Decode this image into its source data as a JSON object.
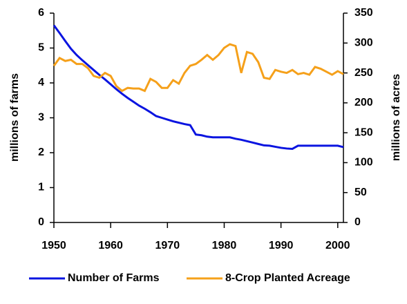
{
  "chart_data": {
    "type": "line",
    "x": [
      1950,
      1951,
      1952,
      1953,
      1954,
      1955,
      1956,
      1957,
      1958,
      1959,
      1960,
      1961,
      1962,
      1963,
      1964,
      1965,
      1966,
      1967,
      1968,
      1969,
      1970,
      1971,
      1972,
      1973,
      1974,
      1975,
      1976,
      1977,
      1978,
      1979,
      1980,
      1981,
      1982,
      1983,
      1984,
      1985,
      1986,
      1987,
      1988,
      1989,
      1990,
      1991,
      1992,
      1993,
      1994,
      1995,
      1996,
      1997,
      1998,
      1999,
      2000,
      2001
    ],
    "series": [
      {
        "name": "Number of Farms",
        "color": "#0a14e0",
        "axis": "y",
        "values": [
          5.65,
          5.43,
          5.2,
          4.98,
          4.8,
          4.65,
          4.51,
          4.37,
          4.23,
          4.1,
          3.96,
          3.82,
          3.69,
          3.57,
          3.46,
          3.35,
          3.26,
          3.16,
          3.05,
          3.0,
          2.95,
          2.9,
          2.86,
          2.82,
          2.79,
          2.52,
          2.5,
          2.46,
          2.44,
          2.44,
          2.44,
          2.44,
          2.4,
          2.37,
          2.33,
          2.29,
          2.25,
          2.21,
          2.2,
          2.17,
          2.14,
          2.12,
          2.11,
          2.2,
          2.2,
          2.2,
          2.2,
          2.2,
          2.2,
          2.2,
          2.2,
          2.16
        ]
      },
      {
        "name": "8-Crop Planted Acreage",
        "color": "#f5a01a",
        "axis": "y2",
        "values": [
          262,
          275,
          270,
          272,
          265,
          265,
          258,
          245,
          242,
          250,
          245,
          228,
          220,
          225,
          224,
          224,
          220,
          240,
          235,
          225,
          225,
          238,
          232,
          250,
          262,
          265,
          272,
          280,
          272,
          280,
          292,
          298,
          295,
          250,
          285,
          282,
          268,
          242,
          240,
          255,
          252,
          250,
          255,
          248,
          250,
          247,
          260,
          257,
          252,
          247,
          253,
          248
        ]
      }
    ],
    "xlim": [
      1950,
      2001
    ],
    "xticks": [
      1950,
      1960,
      1970,
      1980,
      1990,
      2000
    ],
    "ylim": [
      0,
      6
    ],
    "yticks": [
      0,
      1,
      2,
      3,
      4,
      5,
      6
    ],
    "ylabel": "millions of farms",
    "y2lim": [
      0,
      350
    ],
    "y2ticks": [
      0,
      50,
      100,
      150,
      200,
      250,
      300,
      350
    ],
    "y2label": "millions of acres",
    "legend": "bottom"
  }
}
